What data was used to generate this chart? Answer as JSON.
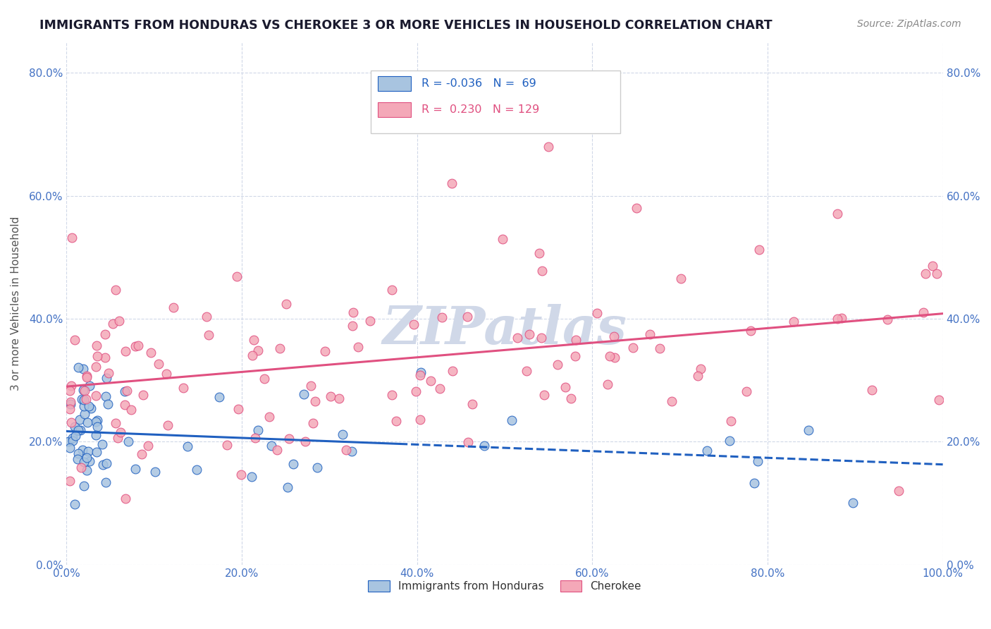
{
  "title": "IMMIGRANTS FROM HONDURAS VS CHEROKEE 3 OR MORE VEHICLES IN HOUSEHOLD CORRELATION CHART",
  "source": "Source: ZipAtlas.com",
  "ylabel": "3 or more Vehicles in Household",
  "legend_labels": [
    "Immigrants from Honduras",
    "Cherokee"
  ],
  "R_blue": -0.036,
  "N_blue": 69,
  "R_pink": 0.23,
  "N_pink": 129,
  "blue_color": "#a8c4e0",
  "pink_color": "#f4a8b8",
  "blue_line_color": "#2060c0",
  "pink_line_color": "#e05080",
  "axis_label_color": "#4472c4",
  "title_color": "#1a1a2e",
  "watermark_text": "ZIPatlas",
  "watermark_color": "#d0d8e8",
  "background_color": "#ffffff",
  "grid_color": "#d0d8e8",
  "xlim": [
    0.0,
    1.0
  ],
  "ylim": [
    0.0,
    0.85
  ],
  "xticks": [
    0.0,
    0.2,
    0.4,
    0.6,
    0.8,
    1.0
  ],
  "xtick_labels": [
    "0.0%",
    "20.0%",
    "40.0%",
    "60.0%",
    "80.0%",
    "100.0%"
  ],
  "yticks": [
    0.0,
    0.2,
    0.4,
    0.6,
    0.8
  ],
  "ytick_labels": [
    "0.0%",
    "20.0%",
    "40.0%",
    "60.0%",
    "80.0%"
  ]
}
